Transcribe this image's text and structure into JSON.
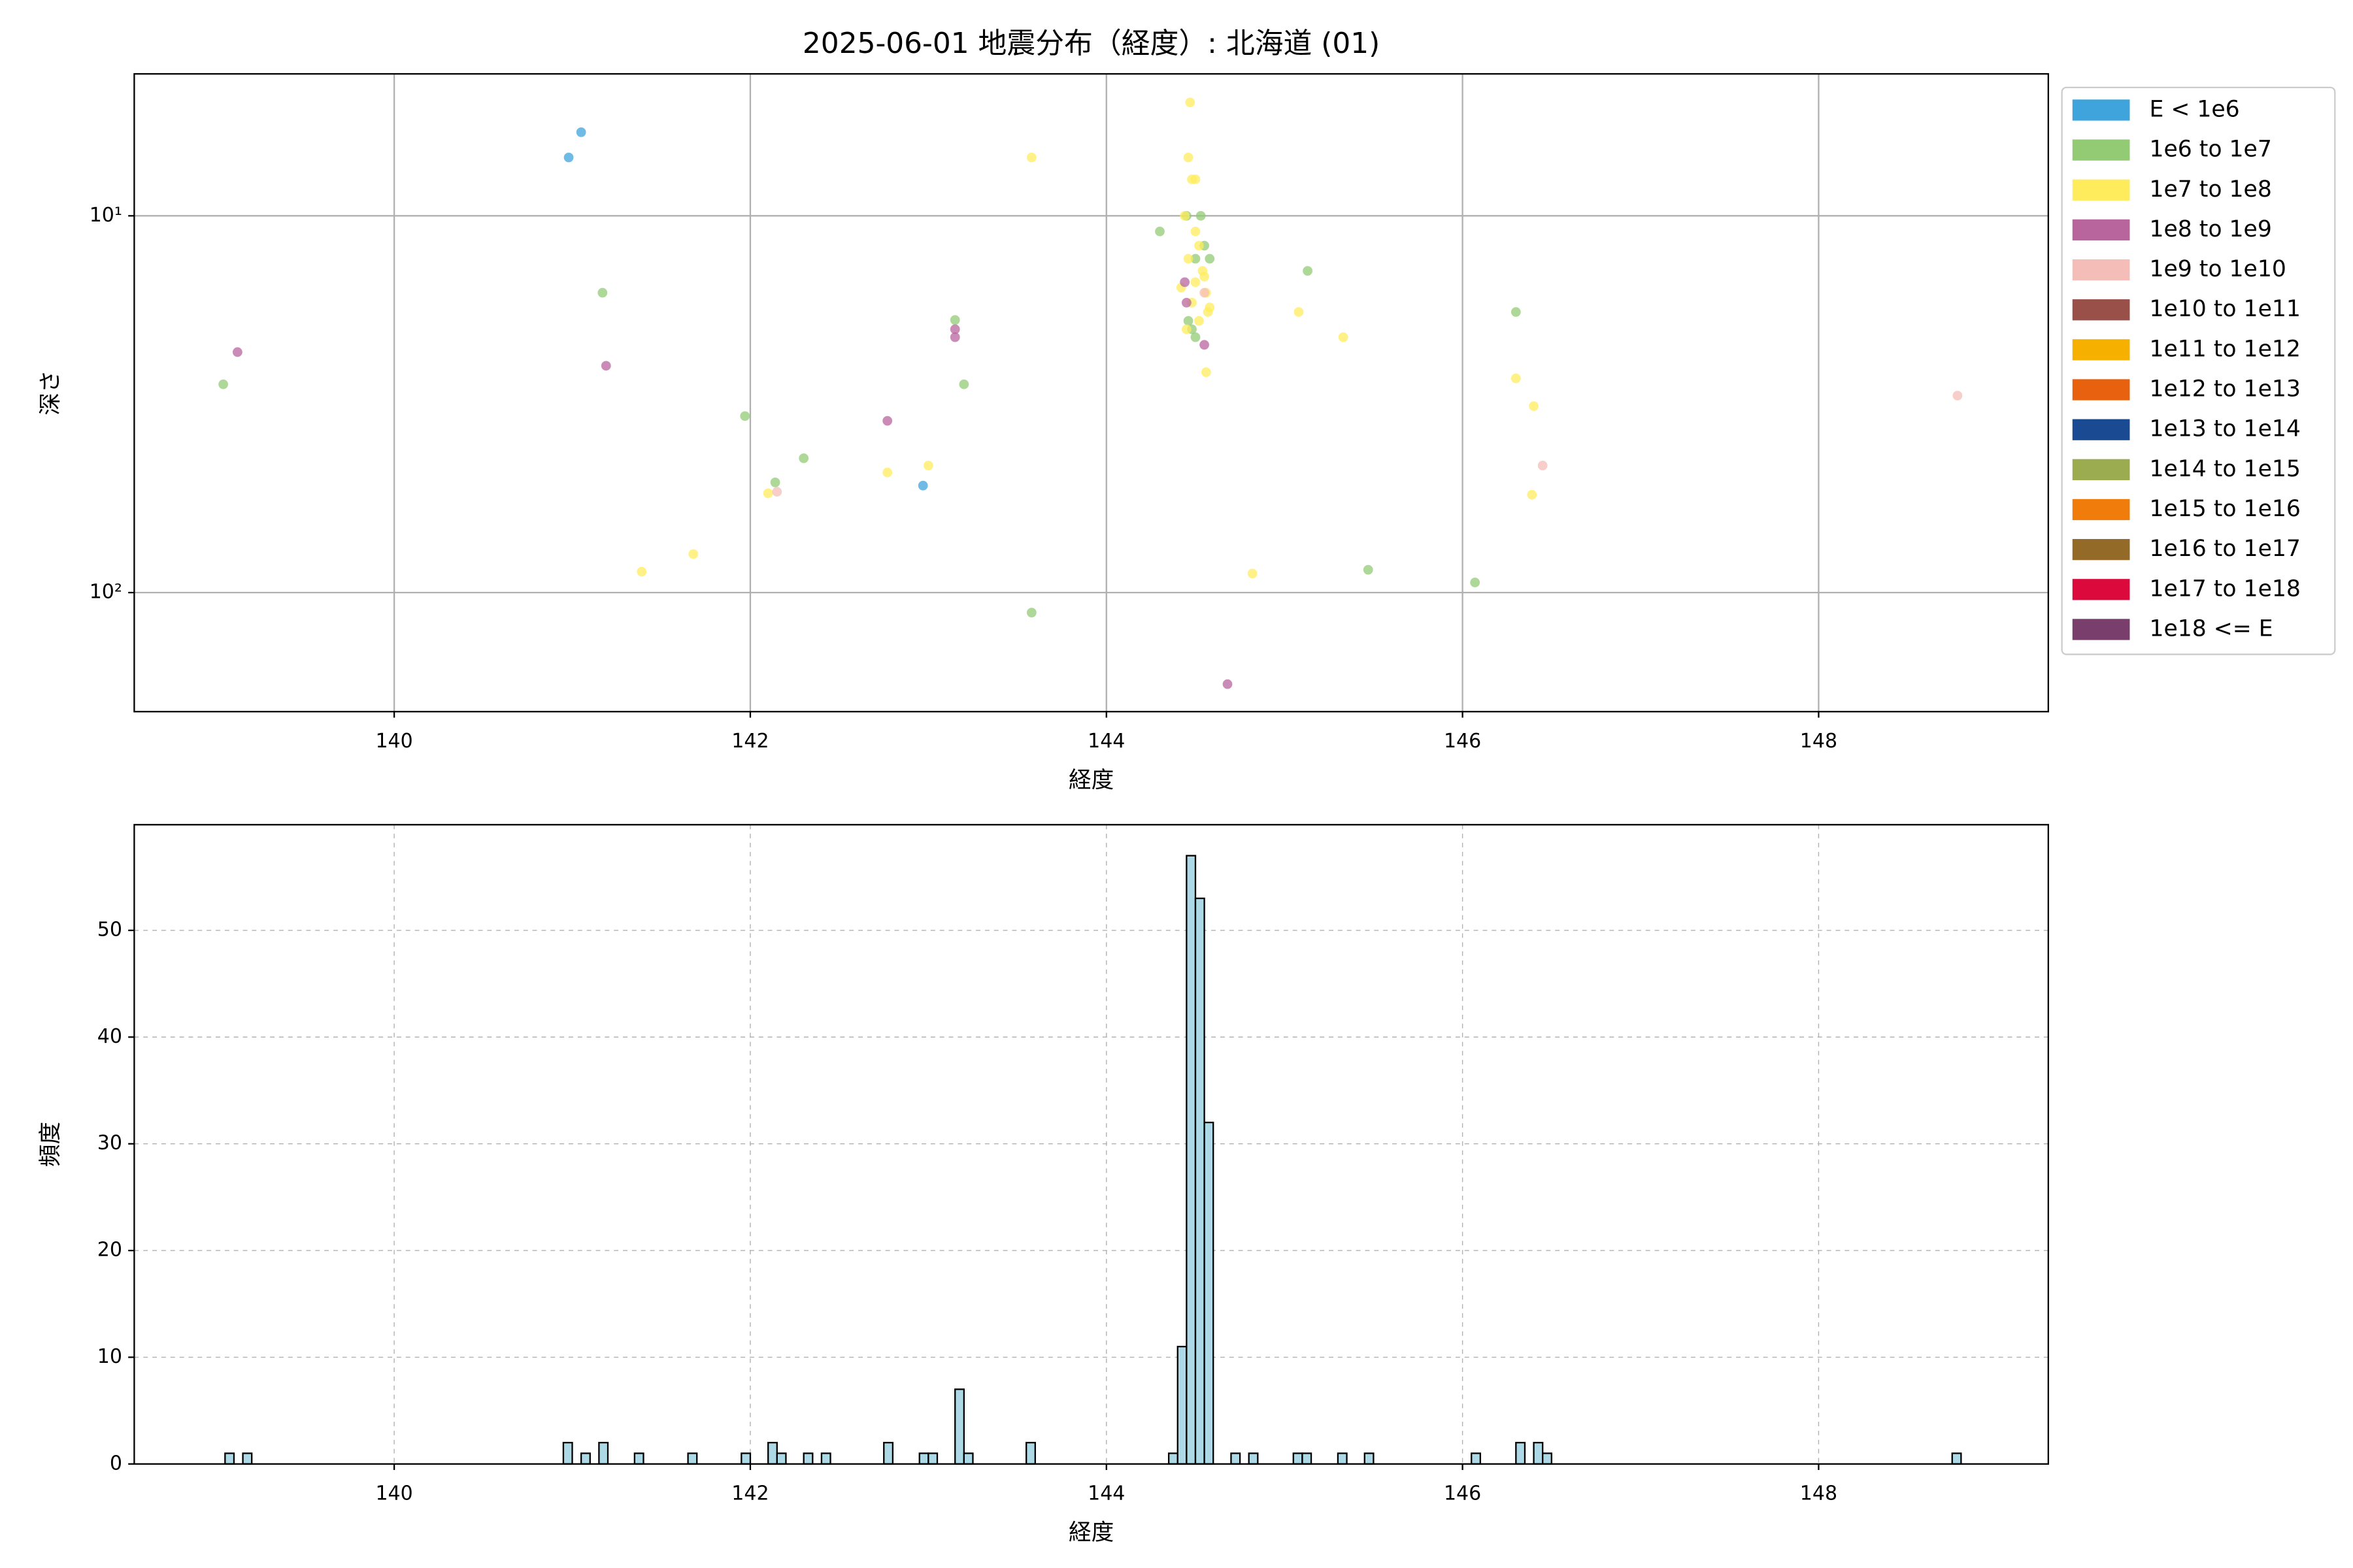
{
  "chart_data": [
    {
      "type": "scatter",
      "title": "2025-06-01 地震分布（経度）: 北海道 (01)",
      "x_label": "経度",
      "y_label": "深さ",
      "log_y": true,
      "grid": true,
      "grid_style": "solid",
      "legend": "right-outside",
      "xlim": [
        138.54,
        149.29
      ],
      "xticks": [
        140,
        142,
        144,
        146,
        148
      ],
      "ylim": [
        207,
        4.2
      ],
      "yticks": [
        {
          "value": 10,
          "label": "10¹"
        },
        {
          "value": 100,
          "label": "10²"
        }
      ],
      "series": [
        {
          "name": "E < 1e6",
          "color": "#3fa4dc",
          "x": [
            141.05,
            140.98,
            142.97
          ],
          "values": [
            6.0,
            7.0,
            52
          ]
        },
        {
          "name": "1e6 to 1e7",
          "color": "#93cb75",
          "x": [
            139.04,
            141.17,
            141.97,
            142.14,
            142.3,
            143.15,
            143.2,
            143.58,
            144.3,
            145.13,
            145.47,
            146.07,
            146.3,
            144.45,
            144.53,
            144.55,
            144.5,
            144.58,
            144.48,
            144.5,
            144.46
          ],
          "values": [
            28,
            16,
            34,
            51,
            44,
            18.9,
            28,
            113,
            11,
            14,
            87,
            94,
            18,
            10,
            10,
            12,
            13,
            13,
            20,
            21,
            19
          ]
        },
        {
          "name": "1e7 to 1e8",
          "color": "#ffec5c",
          "x": [
            141.39,
            141.68,
            142.1,
            142.77,
            143.0,
            143.58,
            144.82,
            145.08,
            145.33,
            146.3,
            146.4,
            146.39,
            144.56,
            144.47,
            144.46,
            144.48,
            144.5,
            144.44,
            144.5,
            144.52,
            144.46,
            144.54,
            144.5,
            144.56,
            144.48,
            144.57,
            144.52,
            144.45,
            144.55,
            144.42,
            144.58
          ],
          "values": [
            88,
            79,
            54.5,
            48,
            46,
            7,
            89,
            18,
            21,
            27,
            32,
            55,
            26,
            5.0,
            7.0,
            8.0,
            8.0,
            10,
            11,
            12,
            13,
            14,
            15,
            16,
            17,
            18,
            19,
            20,
            14.5,
            15.5,
            17.5
          ]
        },
        {
          "name": "1e8 to 1e9",
          "color": "#b8659e",
          "x": [
            139.12,
            141.19,
            142.77,
            143.15,
            143.15,
            144.44,
            144.68,
            144.55,
            144.45
          ],
          "values": [
            23,
            25,
            35,
            20,
            21,
            15,
            175,
            22,
            17
          ]
        },
        {
          "name": "1e9 to 1e10",
          "color": "#f4bdb8",
          "x": [
            148.78,
            146.45,
            142.15,
            144.55
          ],
          "values": [
            30,
            46,
            54,
            16
          ]
        },
        {
          "name": "1e10 to 1e11",
          "color": "#985048",
          "x": [],
          "values": []
        },
        {
          "name": "1e11 to 1e12",
          "color": "#f5b000",
          "x": [],
          "values": []
        },
        {
          "name": "1e12 to 1e13",
          "color": "#e8610e",
          "x": [],
          "values": []
        },
        {
          "name": "1e13 to 1e14",
          "color": "#1a4a91",
          "x": [],
          "values": []
        },
        {
          "name": "1e14 to 1e15",
          "color": "#9bab4f",
          "x": [],
          "values": []
        },
        {
          "name": "1e15 to 1e16",
          "color": "#f07c0c",
          "x": [],
          "values": []
        },
        {
          "name": "1e16 to 1e17",
          "color": "#936a28",
          "x": [],
          "values": []
        },
        {
          "name": "1e17 to 1e18",
          "color": "#dc0a3c",
          "x": [],
          "values": []
        },
        {
          "name": "1e18 <= E",
          "color": "#7a3e6c",
          "x": [],
          "values": []
        }
      ]
    },
    {
      "type": "histogram",
      "x_label": "経度",
      "y_label": "頻度",
      "grid": true,
      "grid_style": "dashed",
      "color": "#add8e6",
      "edge_color": "#000000",
      "xlim": [
        138.54,
        149.29
      ],
      "xticks": [
        140,
        142,
        144,
        146,
        148
      ],
      "ylim": [
        0,
        59.9
      ],
      "yticks": [
        0,
        10,
        20,
        30,
        40,
        50
      ],
      "bins": [
        139,
        139.05,
        139.1,
        139.15,
        139.2,
        139.25,
        139.3,
        139.35,
        139.4,
        139.45,
        139.5,
        139.55,
        139.6,
        139.65,
        139.7,
        139.75,
        139.8,
        139.85,
        139.9,
        139.95,
        140,
        140.05,
        140.1,
        140.15,
        140.2,
        140.25,
        140.3,
        140.35,
        140.4,
        140.45,
        140.5,
        140.55,
        140.6,
        140.65,
        140.7,
        140.75,
        140.8,
        140.85,
        140.9,
        140.95,
        141,
        141.05,
        141.1,
        141.15,
        141.2,
        141.25,
        141.3,
        141.35,
        141.4,
        141.45,
        141.5,
        141.55,
        141.6,
        141.65,
        141.7,
        141.75,
        141.8,
        141.85,
        141.9,
        141.95,
        142,
        142.05,
        142.1,
        142.15,
        142.2,
        142.25,
        142.3,
        142.35,
        142.4,
        142.45,
        142.5,
        142.55,
        142.6,
        142.65,
        142.7,
        142.75,
        142.8,
        142.85,
        142.9,
        142.95,
        143,
        143.05,
        143.1,
        143.15,
        143.2,
        143.25,
        143.3,
        143.35,
        143.4,
        143.45,
        143.5,
        143.55,
        143.6,
        143.65,
        143.7,
        143.75,
        143.8,
        143.85,
        143.9,
        143.95,
        144,
        144.05,
        144.1,
        144.15,
        144.2,
        144.25,
        144.3,
        144.35,
        144.4,
        144.45,
        144.5,
        144.55,
        144.6,
        144.65,
        144.7,
        144.75,
        144.8,
        144.85,
        144.9,
        144.95,
        145,
        145.05,
        145.1,
        145.15,
        145.2,
        145.25,
        145.3,
        145.35,
        145.4,
        145.45,
        145.5,
        145.55,
        145.6,
        145.65,
        145.7,
        145.75,
        145.8,
        145.85,
        145.9,
        145.95,
        146,
        146.05,
        146.1,
        146.15,
        146.2,
        146.25,
        146.3,
        146.35,
        146.4,
        146.45,
        146.5,
        146.55,
        146.6,
        146.65,
        146.7,
        146.75,
        146.8,
        146.85,
        146.9,
        146.95,
        147,
        147.05,
        147.1,
        147.15,
        147.2,
        147.25,
        147.3,
        147.35,
        147.4,
        147.45,
        147.5,
        147.55,
        147.6,
        147.65,
        147.7,
        147.75,
        147.8,
        147.85,
        147.9,
        147.95,
        148,
        148.05,
        148.1,
        148.15,
        148.2,
        148.25,
        148.3,
        148.35,
        148.4,
        148.45,
        148.5,
        148.55,
        148.6,
        148.65,
        148.7,
        148.75,
        148.8,
        148.85
      ],
      "values": [
        0,
        1,
        0,
        1,
        0,
        0,
        0,
        0,
        0,
        0,
        0,
        0,
        0,
        0,
        0,
        0,
        0,
        0,
        0,
        0,
        0,
        0,
        0,
        0,
        0,
        0,
        0,
        0,
        0,
        0,
        0,
        0,
        0,
        0,
        0,
        0,
        0,
        0,
        0,
        2,
        0,
        1,
        0,
        2,
        0,
        0,
        0,
        1,
        0,
        0,
        0,
        0,
        0,
        1,
        0,
        0,
        0,
        0,
        0,
        1,
        0,
        0,
        2,
        1,
        0,
        0,
        1,
        0,
        1,
        0,
        0,
        0,
        0,
        0,
        0,
        2,
        0,
        0,
        0,
        1,
        1,
        0,
        0,
        7,
        1,
        0,
        0,
        0,
        0,
        0,
        0,
        2,
        0,
        0,
        0,
        0,
        0,
        0,
        0,
        0,
        0,
        0,
        0,
        0,
        0,
        0,
        0,
        1,
        11,
        57,
        53,
        32,
        0,
        0,
        1,
        0,
        1,
        0,
        0,
        0,
        0,
        1,
        1,
        0,
        0,
        0,
        1,
        0,
        0,
        1,
        0,
        0,
        0,
        0,
        0,
        0,
        0,
        0,
        0,
        0,
        0,
        1,
        0,
        0,
        0,
        0,
        2,
        0,
        2,
        1,
        0,
        0,
        0,
        0,
        0,
        0,
        0,
        0,
        0,
        0,
        0,
        0,
        0,
        0,
        0,
        0,
        0,
        0,
        0,
        0,
        0,
        0,
        0,
        0,
        0,
        0,
        0,
        0,
        0,
        0,
        0,
        0,
        0,
        0,
        0,
        0,
        0,
        0,
        0,
        0,
        0,
        0,
        0,
        0,
        0,
        1,
        0
      ]
    }
  ]
}
